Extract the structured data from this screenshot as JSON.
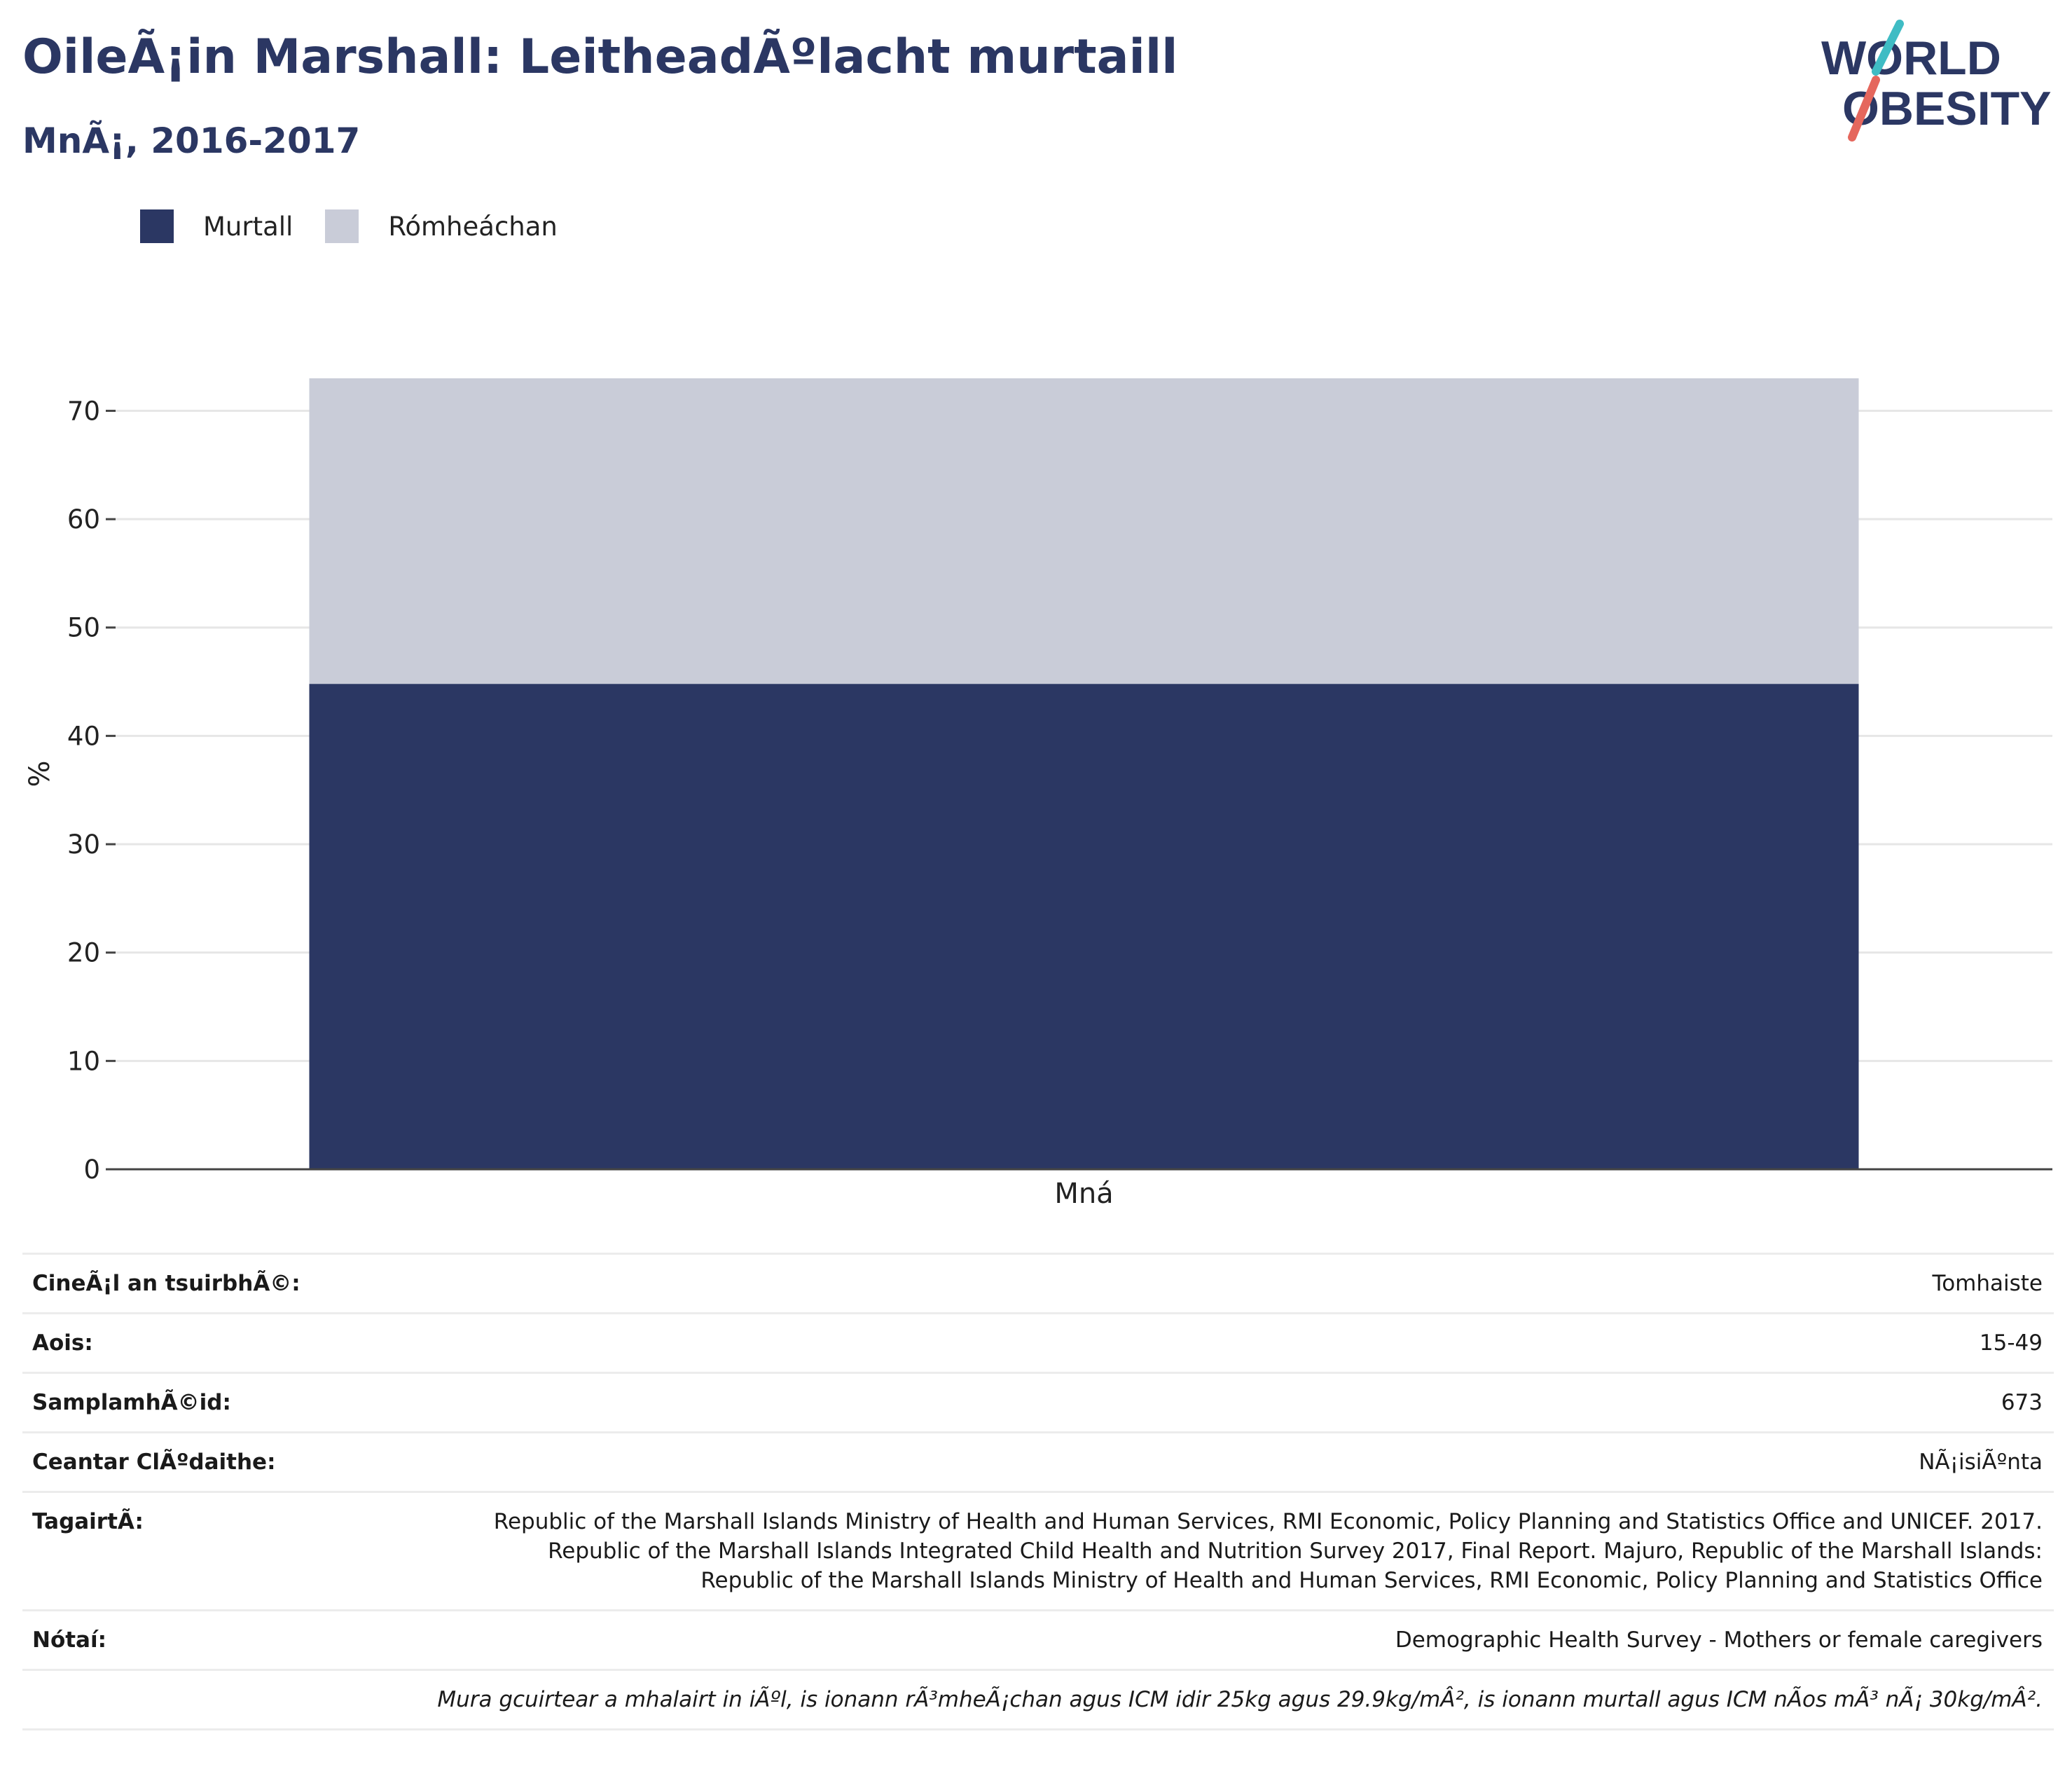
{
  "header": {
    "title": "OileÃ¡in Marshall: LeitheadÃºlacht murtaill",
    "subtitle": "MnÃ¡, 2016-2017"
  },
  "logo": {
    "line1": "WORLD",
    "line2": "OBESITY",
    "text_color": "#2b3763",
    "accent_teal": "#3fbcc4",
    "accent_coral": "#e5675d"
  },
  "legend": [
    {
      "label": "Murtall",
      "color": "#2b3763"
    },
    {
      "label": "Rómheáchan",
      "color": "#c9ccd8"
    }
  ],
  "chart_data": {
    "type": "bar",
    "stacked": true,
    "categories": [
      "Mná"
    ],
    "series": [
      {
        "name": "Murtall",
        "values": [
          44.8
        ],
        "color": "#2b3763"
      },
      {
        "name": "Rómheáchan",
        "values": [
          28.2
        ],
        "color": "#c9ccd8"
      }
    ],
    "ylabel": "%",
    "xlabel": "",
    "ylim": [
      0,
      73
    ],
    "yticks": [
      0,
      10,
      20,
      30,
      40,
      50,
      60,
      70
    ],
    "grid": true,
    "legend_position": "top-left"
  },
  "info": {
    "rows": [
      {
        "label": "CineÃ¡l an tsuirbhÃ©:",
        "value": "Tomhaiste"
      },
      {
        "label": "Aois:",
        "value": "15-49"
      },
      {
        "label": "SamplamhÃ©id:",
        "value": "673"
      },
      {
        "label": "Ceantar ClÃºdaithe:",
        "value": "NÃ¡isiÃºnta"
      },
      {
        "label": "TagairtÃ:",
        "value": "Republic of the Marshall Islands Ministry of Health and Human Services, RMI Economic, Policy Planning and Statistics Office and UNICEF. 2017. Republic of the Marshall Islands Integrated Child Health and Nutrition Survey 2017, Final Report. Majuro, Republic of the Marshall Islands: Republic of the Marshall Islands Ministry of Health and Human Services, RMI Economic, Policy Planning and Statistics Office"
      },
      {
        "label": "Nótaí:",
        "value": "Demographic Health Survey - Mothers or female caregivers"
      }
    ],
    "footnote": "Mura gcuirtear a mhalairt in iÃºl, is ionann rÃ³mheÃ¡chan agus ICM idir 25kg agus 29.9kg/mÂ², is ionann murtall agus ICM nÃos mÃ³ nÃ¡ 30kg/mÂ²."
  }
}
